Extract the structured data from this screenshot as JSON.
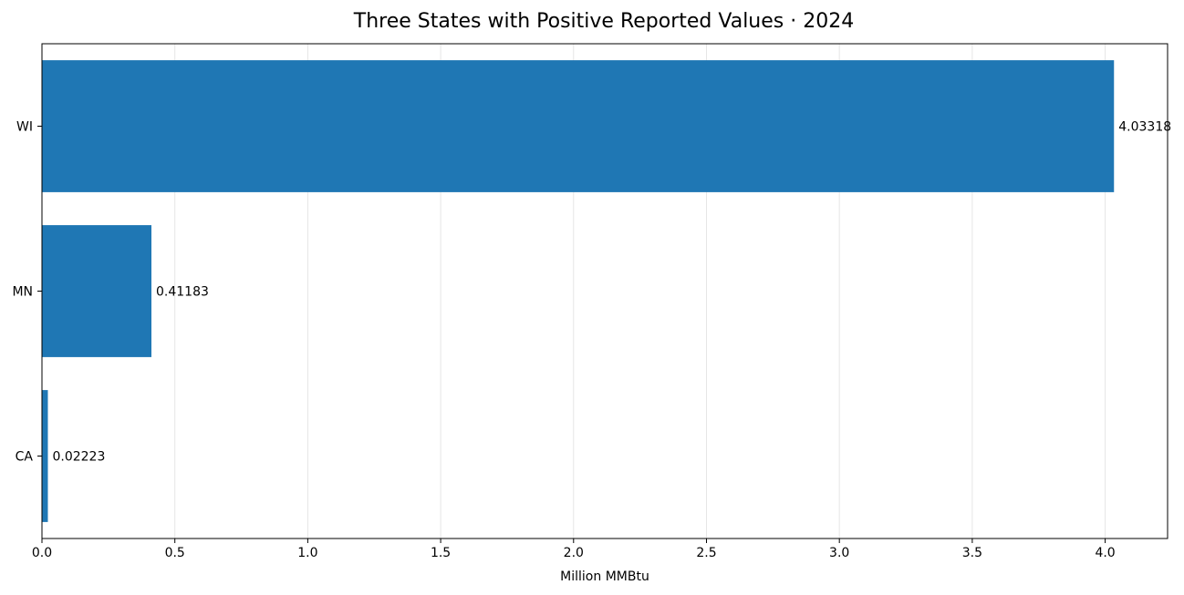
{
  "chart_data": {
    "type": "bar",
    "orientation": "horizontal",
    "title": "Three States with Positive Reported Values · 2024",
    "xlabel": "Million MMBtu",
    "ylabel": "",
    "categories": [
      "WI",
      "MN",
      "CA"
    ],
    "values": [
      4.03318,
      0.41183,
      0.02223
    ],
    "value_labels": [
      "4.03318",
      "0.41183",
      "0.02223"
    ],
    "xlim": [
      0,
      4.2348
    ],
    "xticks": [
      0,
      0.5,
      1.0,
      1.5,
      2.0,
      2.5,
      3.0,
      3.5,
      4.0
    ],
    "xtick_labels": [
      "0.0",
      "0.5",
      "1.0",
      "1.5",
      "2.0",
      "2.5",
      "3.0",
      "3.5",
      "4.0"
    ],
    "grid": "x-axis vertical lines",
    "legend": "none",
    "bar_color": "#1f77b4"
  }
}
